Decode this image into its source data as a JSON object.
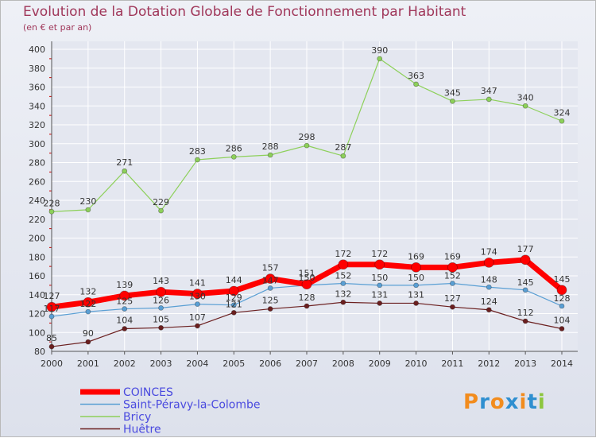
{
  "title": "Evolution de la Dotation Globale de Fonctionnement par Habitant",
  "subtitle": "(en € et par an)",
  "logo": {
    "letters": [
      "P",
      "r",
      "o",
      "x",
      "i",
      "t",
      "i"
    ],
    "colors": [
      "#f28c1e",
      "#2f8fd0",
      "#f28c1e",
      "#2f8fd0",
      "#f28c1e",
      "#2f8fd0",
      "#8dc63f"
    ]
  },
  "chart_data": {
    "type": "line",
    "title": "Evolution de la Dotation Globale de Fonctionnement par Habitant",
    "subtitle": "(en € et par an)",
    "xlabel": "",
    "ylabel": "",
    "ylim": [
      80,
      400
    ],
    "yticks": [
      80,
      100,
      120,
      140,
      160,
      180,
      200,
      220,
      240,
      260,
      280,
      300,
      320,
      340,
      360,
      380,
      400
    ],
    "x": [
      2000,
      2001,
      2002,
      2003,
      2004,
      2005,
      2006,
      2007,
      2008,
      2009,
      2010,
      2011,
      2012,
      2013,
      2014
    ],
    "grid": true,
    "legend_position": "bottom-left",
    "series": [
      {
        "name": "Bricy",
        "color": "#8dd05a",
        "values": [
          228,
          230,
          271,
          229,
          283,
          286,
          288,
          298,
          287,
          390,
          363,
          345,
          347,
          340,
          324
        ]
      },
      {
        "name": "Saint-Péravy-la-Colombe",
        "color": "#5a9fd4",
        "values": [
          117,
          122,
          125,
          126,
          130,
          129,
          147,
          150,
          152,
          150,
          150,
          152,
          148,
          145,
          128
        ]
      },
      {
        "name": "Huêtre",
        "color": "#6b1f1f",
        "values": [
          85,
          90,
          104,
          105,
          107,
          121,
          125,
          128,
          132,
          131,
          131,
          127,
          124,
          112,
          104
        ]
      },
      {
        "name": "COINCES",
        "color": "#ff0000",
        "values": [
          127,
          132,
          139,
          143,
          141,
          144,
          157,
          151,
          172,
          172,
          169,
          169,
          174,
          177,
          145
        ]
      }
    ],
    "labels": {
      "Bricy": [
        "228",
        "230",
        "271",
        "229",
        "283",
        "286",
        "288",
        "298",
        "287",
        "390",
        "363",
        "345",
        "347",
        "340",
        "324"
      ],
      "COINCES": [
        "127",
        "132",
        "139",
        "143",
        "141",
        "144",
        "157",
        "151",
        "172",
        "172",
        "169",
        "169",
        "174",
        "177",
        "145"
      ],
      "Saint-Péravy-la-Colombe": [
        "117",
        "122",
        "125",
        "126",
        "130",
        "129",
        "147",
        "150",
        "152",
        "150",
        "150",
        "152",
        "148",
        "145",
        "128"
      ],
      "Huêtre": [
        "85",
        "90",
        "104",
        "105",
        "107",
        "121",
        "125",
        "128",
        "132",
        "131",
        "131",
        "127",
        "124",
        "112",
        "104"
      ]
    },
    "legend": [
      "COINCES",
      "Saint-Péravy-la-Colombe",
      "Bricy",
      "Huêtre"
    ]
  }
}
